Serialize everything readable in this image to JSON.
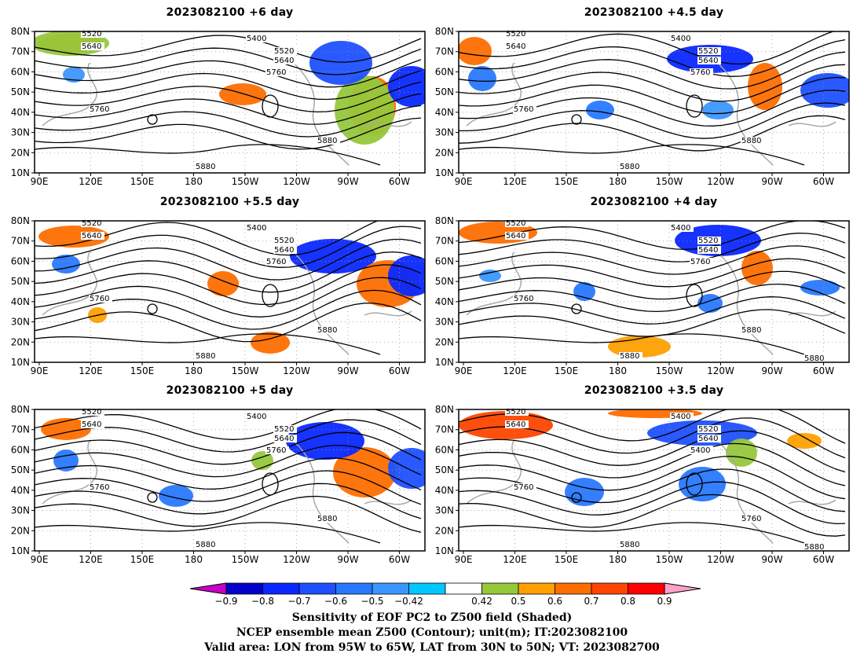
{
  "panels": [
    {
      "title": "2023082100 +6 day",
      "labels": [
        "5520",
        "5640",
        "5400",
        "5520",
        "5640",
        "5760",
        "5760",
        "5880",
        "5880"
      ]
    },
    {
      "title": "2023082100 +4.5 day",
      "labels": [
        "5520",
        "5640",
        "5400",
        "5520",
        "5640",
        "5760",
        "5760",
        "5880",
        "5880"
      ]
    },
    {
      "title": "2023082100 +5.5 day",
      "labels": [
        "5520",
        "5640",
        "5400",
        "5520",
        "5640",
        "5760",
        "5760",
        "5880",
        "5880"
      ]
    },
    {
      "title": "2023082100 +4 day",
      "labels": [
        "5520",
        "5640",
        "5400",
        "5520",
        "5640",
        "5760",
        "5760",
        "5880",
        "5880",
        "5880"
      ]
    },
    {
      "title": "2023082100 +5 day",
      "labels": [
        "5520",
        "5640",
        "5400",
        "5520",
        "5640",
        "5760",
        "5760",
        "5880",
        "5880"
      ]
    },
    {
      "title": "2023082100 +3.5 day",
      "labels": [
        "5520",
        "5640",
        "5400",
        "5520",
        "5640",
        "5400",
        "5760",
        "5760",
        "5880",
        "5880"
      ]
    }
  ],
  "lon_ticks": [
    "90E",
    "120E",
    "150E",
    "180",
    "150W",
    "120W",
    "90W",
    "60W"
  ],
  "lat_ticks": [
    "10N",
    "20N",
    "30N",
    "40N",
    "50N",
    "60N",
    "70N",
    "80N"
  ],
  "colorbar": {
    "labels": [
      "−0.9",
      "−0.8",
      "−0.7",
      "−0.6",
      "−0.5",
      "−0.42",
      "0.42",
      "0.5",
      "0.6",
      "0.7",
      "0.8",
      "0.9"
    ],
    "colors": [
      "#0000c8",
      "#0a28ff",
      "#1e50ff",
      "#2878ff",
      "#3c96ff",
      "#00c8ff",
      "#ffffff",
      "#96c83c",
      "#ffa000",
      "#ff6e00",
      "#ff4600",
      "#ff0000"
    ],
    "end_low": "#c800c8",
    "end_high": "#ffa0c8"
  },
  "caption": {
    "line1": "Sensitivity of EOF PC2 to Z500 field (Shaded)",
    "line2": "NCEP ensemble mean Z500 (Contour); unit(m); IT:2023082100",
    "line3": "Valid area: LON from 95W to 65W, LAT from 30N to 50N; VT: 2023082700"
  }
}
